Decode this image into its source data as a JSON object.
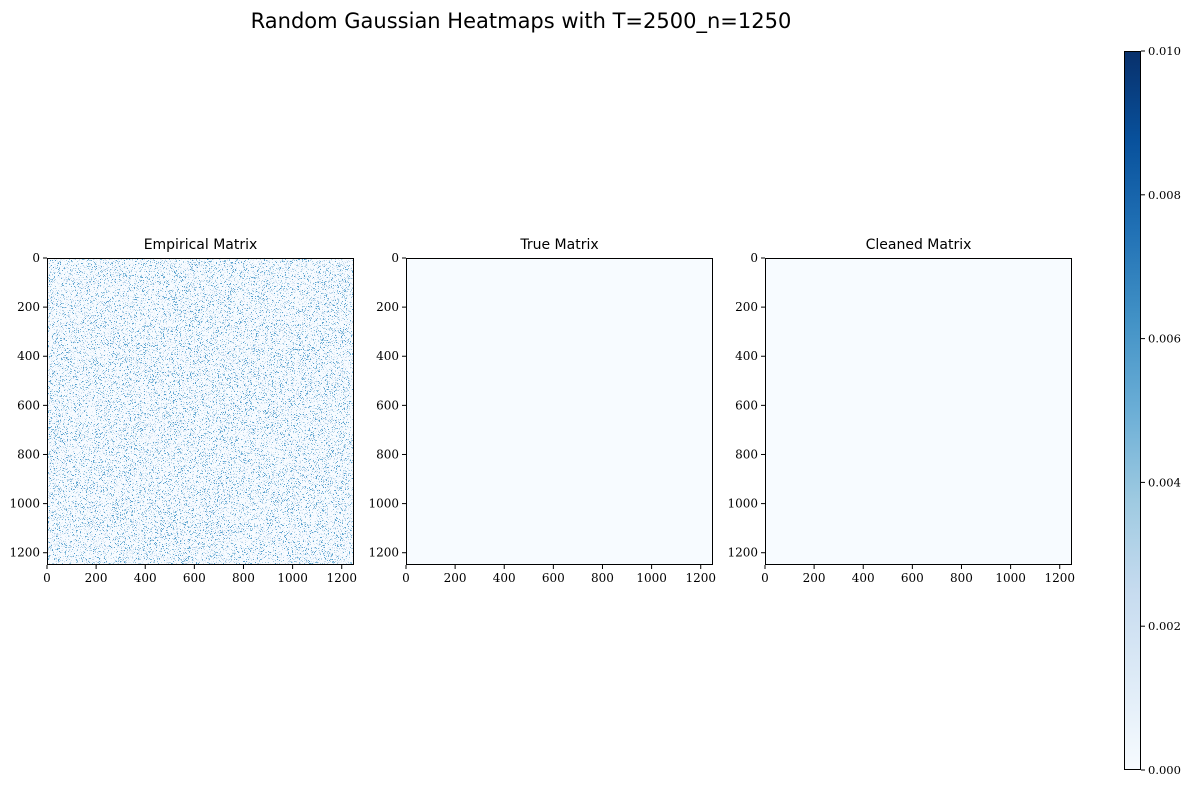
{
  "suptitle": "Random Gaussian Heatmaps with T=2500_n=1250",
  "colormap": {
    "name": "Blues",
    "stops": [
      "#f7fbff",
      "#deebf7",
      "#c6dbef",
      "#9ecae1",
      "#6baed6",
      "#4292c6",
      "#2171b5",
      "#08519c",
      "#08306b"
    ],
    "vmin": 0.0,
    "vmax": 0.01
  },
  "chart_data": [
    {
      "type": "heatmap",
      "title": "Empirical Matrix",
      "matrix_size": 1250,
      "xlim": [
        0,
        1250
      ],
      "ylim": [
        1250,
        0
      ],
      "xticks": [
        "0",
        "200",
        "400",
        "600",
        "800",
        "1000",
        "1200"
      ],
      "yticks": [
        "0",
        "200",
        "400",
        "600",
        "800",
        "1000",
        "1200"
      ],
      "fill_description": "noisy",
      "typical_value_range": [
        0.0,
        0.006
      ]
    },
    {
      "type": "heatmap",
      "title": "True Matrix",
      "matrix_size": 1250,
      "xlim": [
        0,
        1250
      ],
      "ylim": [
        1250,
        0
      ],
      "xticks": [
        "0",
        "200",
        "400",
        "600",
        "800",
        "1000",
        "1200"
      ],
      "yticks": [
        "0",
        "200",
        "400",
        "600",
        "800",
        "1000",
        "1200"
      ],
      "fill_description": "uniform",
      "typical_value_range": [
        0.0,
        0.0
      ]
    },
    {
      "type": "heatmap",
      "title": "Cleaned Matrix",
      "matrix_size": 1250,
      "xlim": [
        0,
        1250
      ],
      "ylim": [
        1250,
        0
      ],
      "xticks": [
        "0",
        "200",
        "400",
        "600",
        "800",
        "1000",
        "1200"
      ],
      "yticks": [
        "0",
        "200",
        "400",
        "600",
        "800",
        "1000",
        "1200"
      ],
      "fill_description": "uniform",
      "typical_value_range": [
        0.0,
        0.0
      ]
    }
  ],
  "colorbar": {
    "ticks": [
      0.0,
      0.002,
      0.004,
      0.006,
      0.008,
      0.01
    ],
    "tick_labels": [
      "0.000",
      "0.002",
      "0.004",
      "0.006",
      "0.008",
      "0.010"
    ]
  }
}
